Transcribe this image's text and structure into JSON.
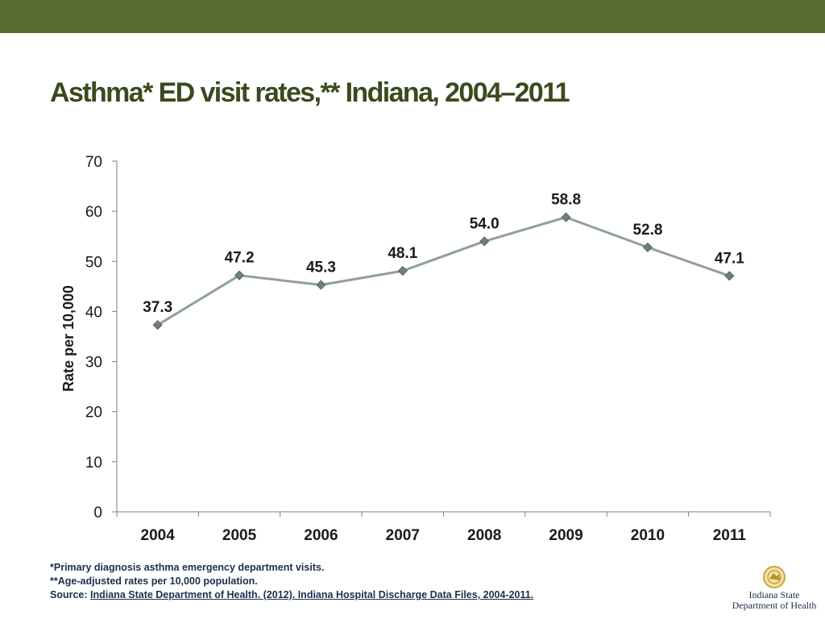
{
  "slide": {
    "title": "Asthma* ED visit rates,** Indiana, 2004–2011"
  },
  "chart_data": {
    "type": "line",
    "categories": [
      "2004",
      "2005",
      "2006",
      "2007",
      "2008",
      "2009",
      "2010",
      "2011"
    ],
    "series": [
      {
        "values": [
          37.3,
          47.2,
          45.3,
          48.1,
          54.0,
          58.8,
          52.8,
          47.1
        ],
        "data_labels": [
          "37.3",
          "47.2",
          "45.3",
          "48.1",
          "54.0",
          "58.8",
          "52.8",
          "47.1"
        ]
      }
    ],
    "xlabel": "",
    "ylabel": "Rate per 10,000",
    "ylim": [
      0,
      70
    ],
    "yticks": [
      "0",
      "10",
      "20",
      "30",
      "40",
      "50",
      "60",
      "70"
    ],
    "grid": false,
    "line_color": "#8fa09a",
    "marker_color": "#6e7f76"
  },
  "footnotes": {
    "line1": "*Primary diagnosis asthma emergency department visits.",
    "line2": "**Age-adjusted rates per 10,000 population.",
    "source_prefix": "Source: ",
    "source_link": "Indiana State Department of Health. (2012). Indiana Hospital Discharge Data Files, 2004-2011."
  },
  "logo": {
    "line1": "Indiana State",
    "line2": "Department of Health"
  },
  "colors": {
    "top_bar": "#556b2f",
    "title": "#3a4a1f",
    "footnote_text": "#1f2d4d"
  }
}
